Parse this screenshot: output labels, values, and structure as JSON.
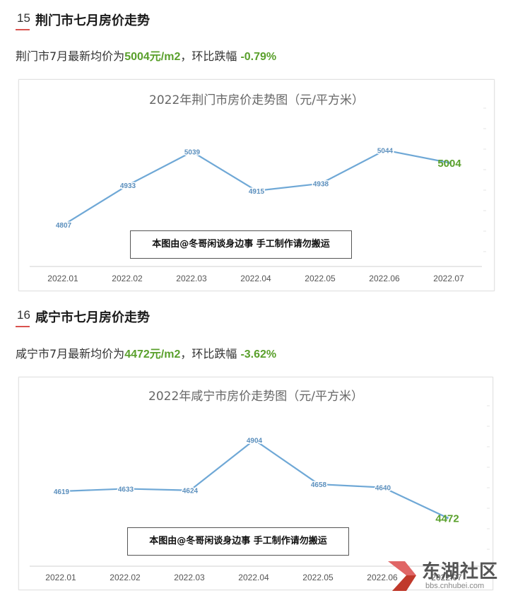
{
  "sections": [
    {
      "number": "15",
      "title": "荆门市七月房价走势",
      "summary": {
        "prefix": "荆门市7月最新均价为",
        "price": "5004元/m2",
        "mid": "，环比跌幅 ",
        "change": "-0.79%"
      },
      "chart_data": {
        "type": "line",
        "title": "2022年荆门市房价走势图（元/平方米）",
        "xlabel": "",
        "ylabel": "",
        "categories": [
          "2022.01",
          "2022.02",
          "2022.03",
          "2022.04",
          "2022.05",
          "2022.06",
          "2022.07"
        ],
        "values": [
          4807,
          4933,
          5039,
          4915,
          4938,
          5044,
          5004
        ],
        "labels": [
          "4807",
          "4933",
          "5039",
          "4915",
          "4938",
          "5044",
          "5004"
        ],
        "ylim": [
          4760,
          5110
        ],
        "grid": false,
        "line_color": "#6fa8d6",
        "last_label_color": "#5aa02c",
        "watermark": "本图由@冬哥闲谈身边事 手工制作请勿搬运"
      }
    },
    {
      "number": "16",
      "title": "咸宁市七月房价走势",
      "summary": {
        "prefix": "咸宁市7月最新均价为",
        "price": "4472元/m2",
        "mid": "，环比跌幅 ",
        "change": "-3.62%"
      },
      "chart_data": {
        "type": "line",
        "title": "2022年咸宁市房价走势图（元/平方米）",
        "xlabel": "",
        "ylabel": "",
        "categories": [
          "2022.01",
          "2022.02",
          "2022.03",
          "2022.04",
          "2022.05",
          "2022.06",
          "2022.07"
        ],
        "values": [
          4619,
          4633,
          4624,
          4904,
          4658,
          4640,
          4472
        ],
        "labels": [
          "4619",
          "4633",
          "4624",
          "4904",
          "4658",
          "4640",
          "4472"
        ],
        "ylim": [
          4380,
          4960
        ],
        "grid": false,
        "line_color": "#6fa8d6",
        "last_label_color": "#5aa02c",
        "watermark": "本图由@冬哥闲谈身边事 手工制作请勿搬运"
      }
    }
  ],
  "site_logo": {
    "name": "东湖社区",
    "url": "bbs.cnhubei.com",
    "icon": "site-logo-icon",
    "color": "#d9534f"
  }
}
